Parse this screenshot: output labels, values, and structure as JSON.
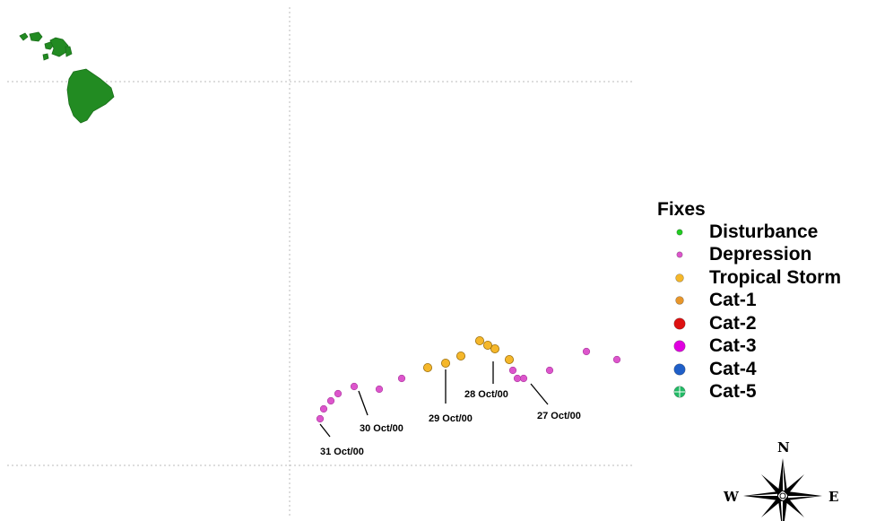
{
  "legend": {
    "title": "Fixes",
    "items": [
      {
        "label": "Disturbance",
        "color": "#22cc22",
        "dot": "small"
      },
      {
        "label": "Depression",
        "color": "#dd55cc",
        "dot": "small"
      },
      {
        "label": "Tropical Storm",
        "color": "#f5b72a",
        "dot": "medium"
      },
      {
        "label": "Cat-1",
        "color": "#e8962a",
        "dot": "medium"
      },
      {
        "label": "Cat-2",
        "color": "#dd1111",
        "dot": "large"
      },
      {
        "label": "Cat-3",
        "color": "#e000e0",
        "dot": "large"
      },
      {
        "label": "Cat-4",
        "color": "#1f5fc8",
        "dot": "large"
      },
      {
        "label": "Cat-5",
        "color": "#22bb66",
        "dot": "large"
      }
    ]
  },
  "track": {
    "date_labels": [
      "28 Oct/00",
      "29 Oct/00",
      "27 Oct/00",
      "30 Oct/00",
      "31 Oct/00"
    ]
  },
  "compass": {
    "north": "N",
    "west": "W",
    "east": "E"
  },
  "colors": {
    "land": "#228b22",
    "grid": "#bbbbbb",
    "depression": "#dd55cc",
    "tropical_storm": "#f5b72a"
  }
}
